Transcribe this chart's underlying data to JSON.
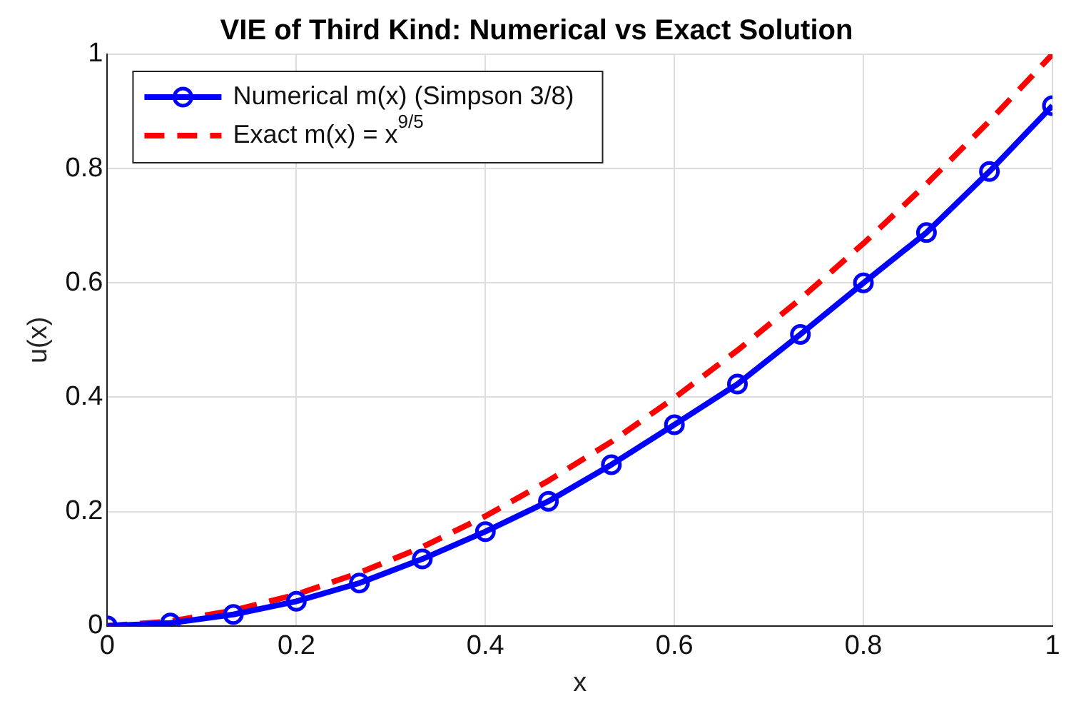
{
  "chart_data": {
    "type": "line",
    "title": "VIE of Third Kind: Numerical vs Exact Solution",
    "xlabel": "x",
    "ylabel": "u(x)",
    "xlim": [
      0,
      1
    ],
    "xticks": [
      0,
      0.2,
      0.4,
      0.6,
      0.8,
      1
    ],
    "ylim": [
      0,
      1
    ],
    "yticks": [
      0,
      0.2,
      0.4,
      0.6,
      0.8,
      1
    ],
    "grid": true,
    "legend": "top left",
    "series": [
      {
        "name": "Numerical m(x) (Simpson 3/8)",
        "color": "#0000ff",
        "marker": "circle",
        "line_style": "solid",
        "x": [
          0,
          0.0667,
          0.1333,
          0.2,
          0.2667,
          0.3333,
          0.4,
          0.4667,
          0.5333,
          0.6,
          0.6667,
          0.7333,
          0.8,
          0.8667,
          0.9333,
          1
        ],
        "values": [
          0,
          0.005,
          0.02,
          0.043,
          0.075,
          0.117,
          0.165,
          0.218,
          0.282,
          0.352,
          0.423,
          0.51,
          0.6,
          0.688,
          0.795,
          0.91
        ]
      },
      {
        "name": "Exact m(x) = x$^{9/5}$",
        "color": "#ff0000",
        "marker": "none",
        "line_style": "dashed",
        "x": [
          0,
          0.0667,
          0.1333,
          0.2,
          0.2667,
          0.3333,
          0.4,
          0.4667,
          0.5333,
          0.6,
          0.6667,
          0.7333,
          0.8,
          0.8667,
          0.9333,
          1
        ],
        "values": [
          0,
          0.008,
          0.027,
          0.055,
          0.093,
          0.138,
          0.192,
          0.254,
          0.322,
          0.399,
          0.482,
          0.572,
          0.669,
          0.773,
          0.883,
          1
        ]
      }
    ]
  }
}
